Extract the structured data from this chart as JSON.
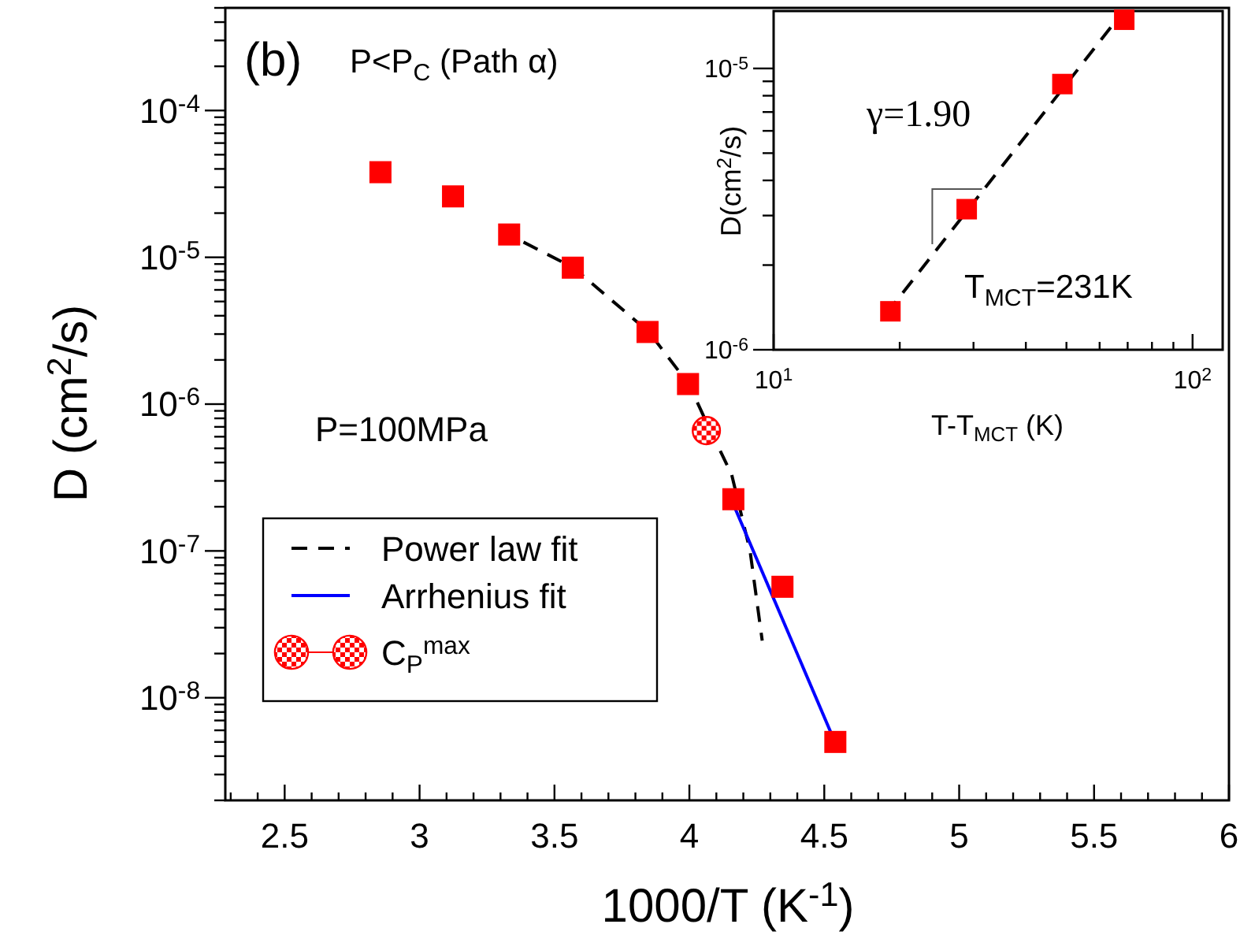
{
  "chart_data": [
    {
      "type": "scatter",
      "xlabel": "1000/T (K$^{-1}$)",
      "ylabel": "D (cm$^{2}$/s)",
      "log": "y",
      "xlim": [
        2.28,
        6
      ],
      "ylim": [
        2e-09,
        0.0005
      ],
      "xticks": [
        {
          "value": 2.3,
          "label": null
        },
        {
          "value": 2.4,
          "label": null
        },
        2.5,
        {
          "value": 2.6,
          "label": null
        },
        {
          "value": 2.7,
          "label": null
        },
        {
          "value": 2.8,
          "label": null
        },
        {
          "value": 2.9,
          "label": null
        },
        3,
        {
          "value": 3.1,
          "label": null
        },
        {
          "value": 3.2,
          "label": null
        },
        {
          "value": 3.3,
          "label": null
        },
        {
          "value": 3.4,
          "label": null
        },
        3.5,
        {
          "value": 3.6,
          "label": null
        },
        {
          "value": 3.7,
          "label": null
        },
        {
          "value": 3.8,
          "label": null
        },
        {
          "value": 3.9,
          "label": null
        },
        4,
        {
          "value": 4.1,
          "label": null
        },
        {
          "value": 4.2,
          "label": null
        },
        {
          "value": 4.3,
          "label": null
        },
        {
          "value": 4.4,
          "label": null
        },
        4.5,
        {
          "value": 4.6,
          "label": null
        },
        {
          "value": 4.7,
          "label": null
        },
        {
          "value": 4.8,
          "label": null
        },
        {
          "value": 4.9,
          "label": null
        },
        5,
        {
          "value": 5.1,
          "label": null
        },
        {
          "value": 5.2,
          "label": null
        },
        {
          "value": 5.3,
          "label": null
        },
        {
          "value": 5.4,
          "label": null
        },
        5.5,
        {
          "value": 5.6,
          "label": null
        },
        {
          "value": 5.7,
          "label": null
        },
        {
          "value": 5.8,
          "label": null
        },
        {
          "value": 5.9,
          "label": null
        },
        6
      ],
      "yticks": [
        {
          "value": 2e-09,
          "label": null
        },
        {
          "value": 3e-09,
          "label": null
        },
        {
          "value": 4e-09,
          "label": null
        },
        {
          "value": 5e-09,
          "label": null
        },
        {
          "value": 6e-09,
          "label": null
        },
        {
          "value": 7e-09,
          "label": null
        },
        {
          "value": 8e-09,
          "label": null
        },
        {
          "value": 9e-09,
          "label": null
        },
        {
          "value": 1e-08,
          "label": "10$^{-8}$"
        },
        {
          "value": 2e-08,
          "label": null
        },
        {
          "value": 3e-08,
          "label": null
        },
        {
          "value": 4e-08,
          "label": null
        },
        {
          "value": 5e-08,
          "label": null
        },
        {
          "value": 6e-08,
          "label": null
        },
        {
          "value": 7e-08,
          "label": null
        },
        {
          "value": 8e-08,
          "label": null
        },
        {
          "value": 9e-08,
          "label": null
        },
        {
          "value": 1e-07,
          "label": "10$^{-7}$"
        },
        {
          "value": 2e-07,
          "label": null
        },
        {
          "value": 3e-07,
          "label": null
        },
        {
          "value": 4e-07,
          "label": null
        },
        {
          "value": 5e-07,
          "label": null
        },
        {
          "value": 6e-07,
          "label": null
        },
        {
          "value": 7e-07,
          "label": null
        },
        {
          "value": 8e-07,
          "label": null
        },
        {
          "value": 9e-07,
          "label": null
        },
        {
          "value": 1e-06,
          "label": "10$^{-6}$"
        },
        {
          "value": 2e-06,
          "label": null
        },
        {
          "value": 3e-06,
          "label": null
        },
        {
          "value": 4e-06,
          "label": null
        },
        {
          "value": 5e-06,
          "label": null
        },
        {
          "value": 6e-06,
          "label": null
        },
        {
          "value": 7e-06,
          "label": null
        },
        {
          "value": 8e-06,
          "label": null
        },
        {
          "value": 9e-06,
          "label": null
        },
        {
          "value": 1e-05,
          "label": "10$^{-5}$"
        },
        {
          "value": 2e-05,
          "label": null
        },
        {
          "value": 3e-05,
          "label": null
        },
        {
          "value": 4e-05,
          "label": null
        },
        {
          "value": 5e-05,
          "label": null
        },
        {
          "value": 6e-05,
          "label": null
        },
        {
          "value": 7e-05,
          "label": null
        },
        {
          "value": 8e-05,
          "label": null
        },
        {
          "value": 9e-05,
          "label": null
        },
        {
          "value": 0.0001,
          "label": "10$^{-4}$"
        },
        {
          "value": 0.0002,
          "label": null
        },
        {
          "value": 0.0003,
          "label": null
        },
        {
          "value": 0.0004,
          "label": null
        },
        {
          "value": 0.0005,
          "label": null
        }
      ],
      "legend": "left",
      "annotations": [
        "(b)",
        "P<P$_{C}$ (Path α)",
        "P=100MPa"
      ],
      "series": [
        {
          "marker": "square",
          "color": "#ff0000",
          "x": [
            2.855,
            3.124,
            3.332,
            3.568,
            3.845,
            3.995,
            4.163,
            4.345,
            4.541
          ],
          "values": [
            3.8e-05,
            2.6e-05,
            1.43e-05,
            8.5e-06,
            3.1e-06,
            1.37e-06,
            2.25e-07,
            5.7e-08,
            5e-09
          ]
        },
        {
          "type": "line",
          "name": "Power law fit",
          "line_style": "dashed",
          "color": "#000000",
          "x": [
            3.33,
            3.57,
            3.85,
            4.0,
            4.05,
            4.157,
            4.225,
            4.27
          ],
          "values": [
            1.43e-05,
            8.5e-06,
            3.1e-06,
            1.35e-06,
            8.5e-07,
            3.3e-07,
            1e-07,
            2.45e-08
          ]
        },
        {
          "type": "line",
          "name": "Arrhenius fit",
          "line_style": "solid",
          "color": "#0000ff",
          "x": [
            4.17,
            4.528
          ],
          "values": [
            1.94e-07,
            5.6e-09
          ]
        },
        {
          "name": "C$_{P}$$^{max}$",
          "marker": "circle",
          "color": "#ff0000",
          "x": [
            4.063
          ],
          "values": [
            6.6e-07
          ]
        }
      ]
    },
    {
      "type": "scatter",
      "xlabel": "T-T$_{MCT}$ (K)",
      "ylabel": "D(cm$^{2}$/s)",
      "log": "xy",
      "xlim": [
        10,
        118
      ],
      "ylim": [
        1e-06,
        1.6e-05
      ],
      "xticks": [
        {
          "value": 10,
          "label": "10$^{1}$"
        },
        {
          "value": 20,
          "label": null
        },
        {
          "value": 30,
          "label": null
        },
        {
          "value": 40,
          "label": null
        },
        {
          "value": 50,
          "label": null
        },
        {
          "value": 60,
          "label": null
        },
        {
          "value": 70,
          "label": null
        },
        {
          "value": 80,
          "label": null
        },
        {
          "value": 90,
          "label": null
        },
        {
          "value": 100,
          "label": "10$^{2}$"
        }
      ],
      "yticks": [
        {
          "value": 1e-06,
          "label": "10$^{-6}$"
        },
        {
          "value": 2e-06,
          "label": null
        },
        {
          "value": 3e-06,
          "label": null
        },
        {
          "value": 4e-06,
          "label": null
        },
        {
          "value": 5e-06,
          "label": null
        },
        {
          "value": 6e-06,
          "label": null
        },
        {
          "value": 7e-06,
          "label": null
        },
        {
          "value": 8e-06,
          "label": null
        },
        {
          "value": 9e-06,
          "label": null
        },
        {
          "value": 1e-05,
          "label": "10$^{-5}$"
        }
      ],
      "annotations": [
        "γ=1.90",
        "T$_{MCT}$=231K"
      ],
      "series": [
        {
          "marker": "square",
          "color": "#ff0000",
          "x": [
            19.0,
            28.9,
            48.9,
            68.7
          ],
          "values": [
            1.37e-06,
            3.16e-06,
            8.8e-06,
            1.49e-05
          ]
        },
        {
          "type": "line",
          "line_style": "dashed",
          "color": "#000000",
          "x": [
            19,
            68
          ],
          "values": [
            1.4e-06,
            1.58e-05
          ]
        }
      ]
    }
  ]
}
